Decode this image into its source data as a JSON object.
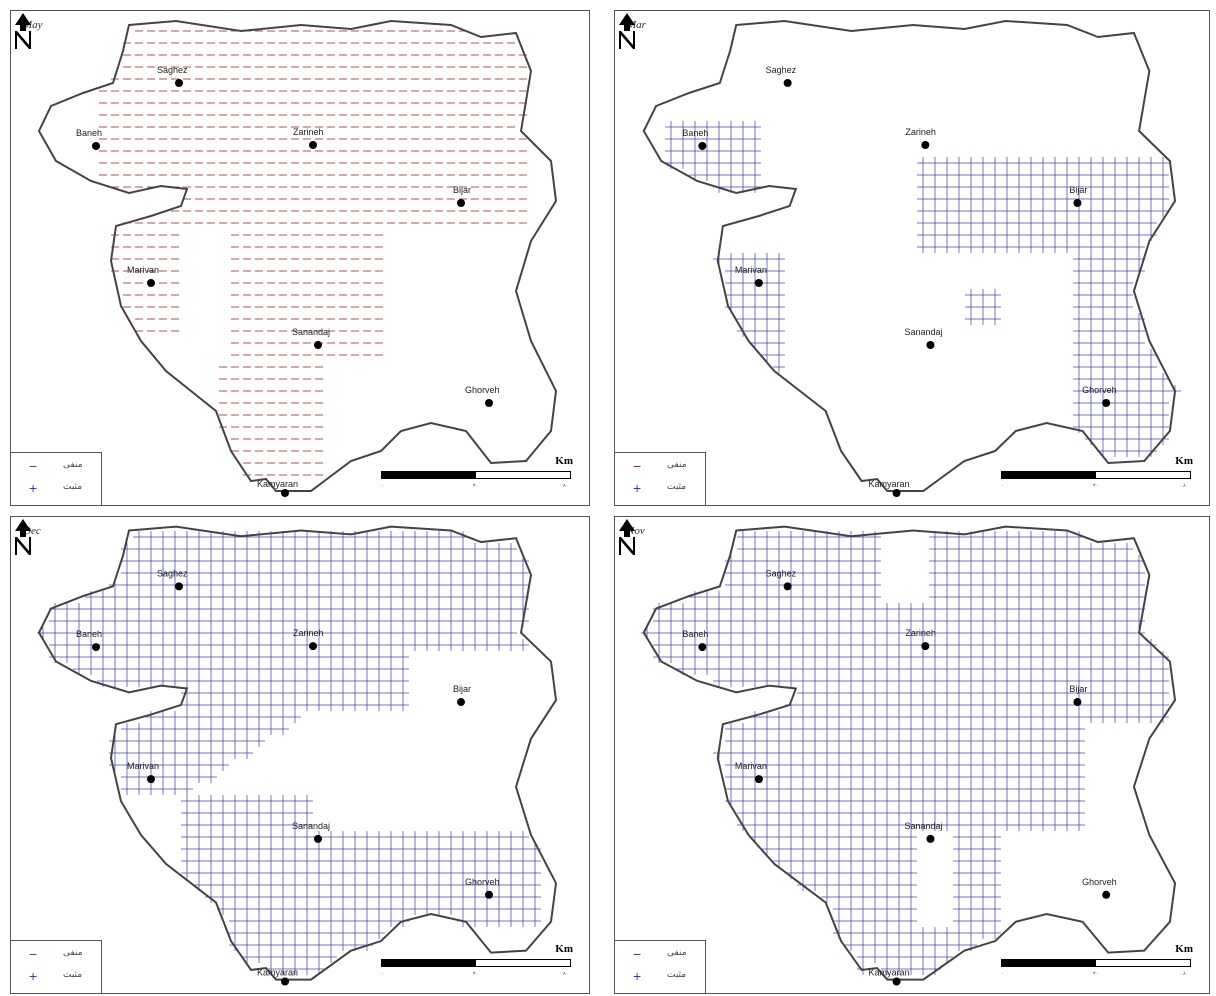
{
  "panels": [
    {
      "id": "may",
      "month": "May",
      "pattern": "negative"
    },
    {
      "id": "mar",
      "month": "Mar",
      "pattern": "positive"
    },
    {
      "id": "dec",
      "month": "Dec",
      "pattern": "positive"
    },
    {
      "id": "nov",
      "month": "Nov",
      "pattern": "positive"
    }
  ],
  "legend": {
    "negative": {
      "symbol": "−",
      "label": "منفی"
    },
    "positive": {
      "symbol": "+",
      "label": "مثبت"
    }
  },
  "scale": {
    "unit": "Km",
    "ticks": [
      "۰",
      "۴۰",
      "۸۰"
    ]
  },
  "colors": {
    "negative": "#a0282a",
    "positive": "#3a3ab0",
    "border": "#555555"
  },
  "cities": [
    {
      "name": "Saghez",
      "labels": [
        "Saghez",
        "Saghez",
        "Saghez",
        "Saghez"
      ]
    },
    {
      "name": "Baneh",
      "labels": [
        "Baneh",
        "Baneh",
        "Baneh",
        "Baneh"
      ]
    },
    {
      "name": "Zarineh",
      "labels": [
        "Zarineh",
        "Zarineh",
        "Zarineh",
        "Zarineh"
      ]
    },
    {
      "name": "Bijar",
      "labels": [
        "Bijar",
        "Bijar",
        "Bijar",
        "Bijar"
      ]
    },
    {
      "name": "Marivan",
      "labels": [
        "Marivan",
        "Marivan",
        "Marivan",
        "Marivan"
      ]
    },
    {
      "name": "Sanandaj",
      "labels": [
        "Sanandaj",
        "Sanandaj",
        "Sanandaj",
        "Sanandaj"
      ]
    },
    {
      "name": "Ghorveh",
      "labels": [
        "Ghorveh",
        "Ghorveh",
        "Ghorveh",
        "Ghorveh"
      ]
    },
    {
      "name": "Kamyaran",
      "labels": [
        "Kamyaran",
        "Kamyaran",
        "Kamyaran",
        "Kamyaran"
      ]
    }
  ],
  "north_arrow": {
    "letter": "N",
    "icon": "north-arrow-icon"
  }
}
